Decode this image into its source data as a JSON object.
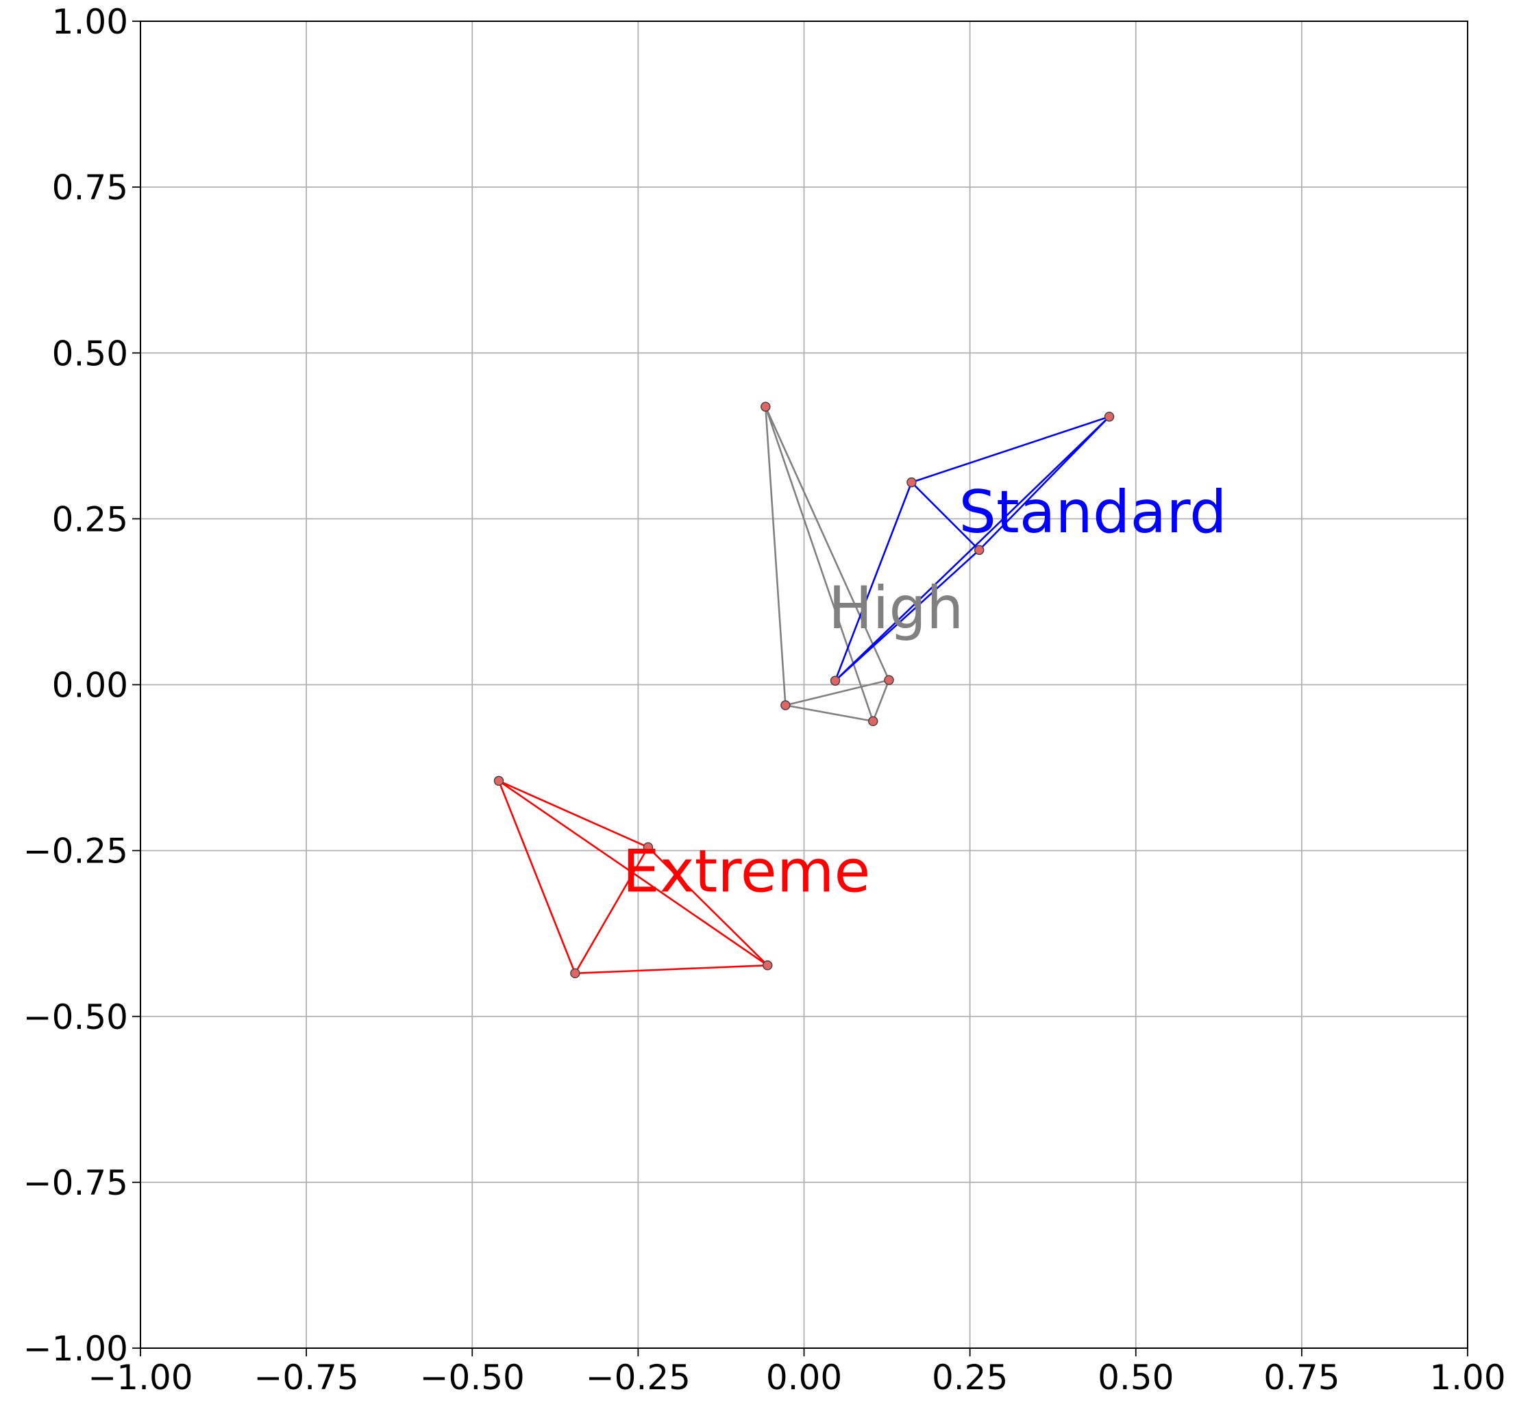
{
  "chart_data": {
    "type": "network",
    "series": [
      {
        "name": "Extreme",
        "color": "red",
        "x": [
          -0.46,
          -0.345,
          -0.055,
          -0.46,
          -0.235,
          -0.345,
          null,
          -0.235,
          -0.055
        ],
        "y": [
          -0.145,
          -0.435,
          -0.423,
          -0.145,
          -0.245,
          -0.435,
          null,
          -0.245,
          -0.423
        ]
      },
      {
        "name": "High",
        "color": "gray",
        "x": [
          -0.058,
          -0.028,
          0.104,
          -0.058,
          0.128,
          -0.028,
          null,
          0.104,
          0.128
        ],
        "y": [
          0.419,
          -0.031,
          -0.055,
          0.419,
          0.007,
          -0.031,
          null,
          -0.055,
          0.007
        ]
      },
      {
        "name": "Standard",
        "color": "blue",
        "x": [
          0.162,
          0.46,
          0.264,
          0.162,
          0.047,
          0.46,
          null,
          0.264,
          0.047
        ],
        "y": [
          0.305,
          0.404,
          0.203,
          0.305,
          0.006,
          0.404,
          null,
          0.203,
          0.006
        ]
      }
    ],
    "marker_color": "#e06666",
    "xlim": [
      -1,
      1
    ],
    "ylim": [
      -1,
      1
    ],
    "xticks": [
      {
        "value": -1,
        "label": "−1.00"
      },
      {
        "value": -0.75,
        "label": "−0.75"
      },
      {
        "value": -0.5,
        "label": "−0.50"
      },
      {
        "value": -0.25,
        "label": "−0.25"
      },
      {
        "value": 0,
        "label": "0.00"
      },
      {
        "value": 0.25,
        "label": "0.25"
      },
      {
        "value": 0.5,
        "label": "0.50"
      },
      {
        "value": 0.75,
        "label": "0.75"
      },
      {
        "value": 1,
        "label": "1.00"
      }
    ],
    "yticks": [
      {
        "value": -1,
        "label": "−1.00"
      },
      {
        "value": -0.75,
        "label": "−0.75"
      },
      {
        "value": -0.5,
        "label": "−0.50"
      },
      {
        "value": -0.25,
        "label": "−0.25"
      },
      {
        "value": 0,
        "label": "0.00"
      },
      {
        "value": 0.25,
        "label": "0.25"
      },
      {
        "value": 0.5,
        "label": "0.50"
      },
      {
        "value": 0.75,
        "label": "0.75"
      },
      {
        "value": 1,
        "label": "1.00"
      }
    ],
    "grid": true
  }
}
